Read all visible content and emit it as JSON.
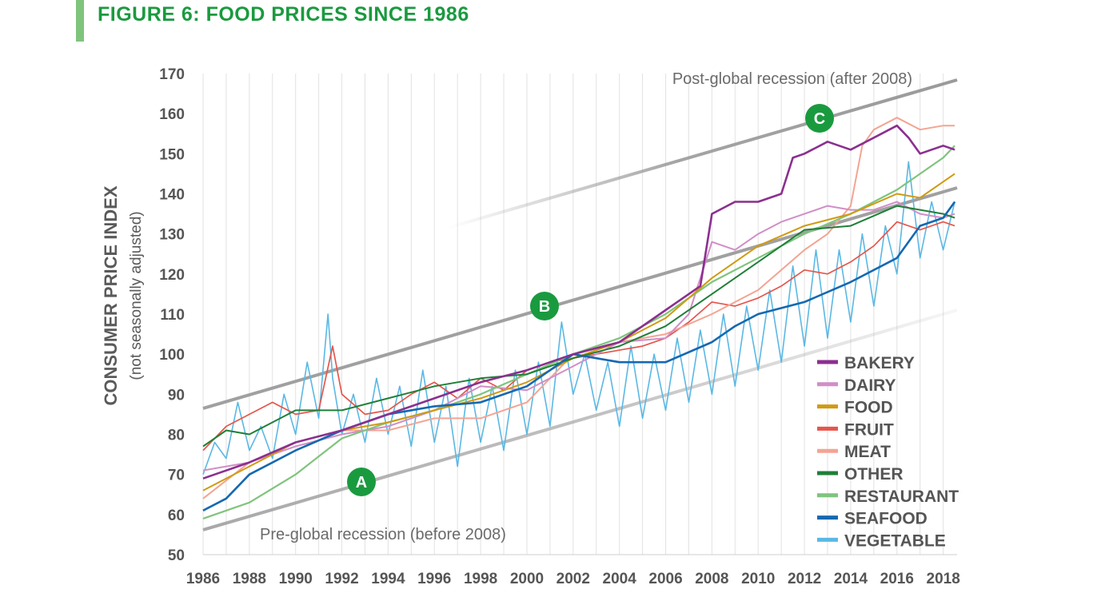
{
  "title": "FIGURE 6: FOOD PRICES SINCE 1986",
  "chart_data": {
    "type": "line",
    "title": "FIGURE 6: FOOD PRICES SINCE 1986",
    "ylabel": "CONSUMER PRICE INDEX",
    "ylabel_sub": "(not seasonally adjusted)",
    "xlabel": "",
    "xlim": [
      1986,
      2018.6
    ],
    "ylim": [
      50,
      170
    ],
    "x_ticks": [
      1986,
      1988,
      1990,
      1992,
      1994,
      1996,
      1998,
      2000,
      2002,
      2004,
      2006,
      2008,
      2010,
      2012,
      2014,
      2016,
      2018
    ],
    "y_ticks": [
      50,
      60,
      70,
      80,
      90,
      100,
      110,
      120,
      130,
      140,
      150,
      160,
      170
    ],
    "grid": "vertical",
    "legend_position": "lower-right",
    "series": [
      {
        "name": "BAKERY",
        "color": "#8b2f8f",
        "x": [
          1986,
          1988,
          1990,
          1992,
          1994,
          1996,
          1998,
          2000,
          2002,
          2004,
          2006,
          2007.5,
          2008,
          2009,
          2010,
          2011,
          2011.5,
          2012,
          2013,
          2014,
          2015,
          2016,
          2016.5,
          2017,
          2018,
          2018.5
        ],
        "y": [
          69,
          73,
          78,
          81,
          85,
          89,
          93,
          96,
          100,
          103,
          111,
          117,
          135,
          138,
          138,
          140,
          149,
          150,
          153,
          151,
          154,
          157,
          154,
          150,
          152,
          151
        ]
      },
      {
        "name": "DAIRY",
        "color": "#d18ec7",
        "x": [
          1986,
          1988,
          1990,
          1992,
          1994,
          1996,
          1998,
          2000,
          2002,
          2004,
          2006,
          2007,
          2008,
          2009,
          2010,
          2011,
          2012,
          2013,
          2014,
          2015,
          2016,
          2017,
          2018,
          2018.5
        ],
        "y": [
          71,
          73,
          77,
          80,
          82,
          86,
          92,
          91,
          97,
          103,
          104,
          110,
          128,
          126,
          130,
          133,
          135,
          137,
          136,
          136,
          138,
          135,
          134,
          135
        ]
      },
      {
        "name": "FOOD",
        "color": "#d09a12",
        "x": [
          1986,
          1988,
          1990,
          1992,
          1994,
          1996,
          1998,
          2000,
          2002,
          2004,
          2006,
          2008,
          2010,
          2012,
          2014,
          2016,
          2017,
          2018,
          2018.5
        ],
        "y": [
          66,
          72,
          78,
          81,
          83,
          86,
          89,
          93,
          99,
          103,
          109,
          119,
          127,
          132,
          135,
          140,
          139,
          143,
          145
        ]
      },
      {
        "name": "FRUIT",
        "color": "#e5564c",
        "x": [
          1986,
          1987,
          1988,
          1989,
          1990,
          1991,
          1991.6,
          1992,
          1993,
          1994,
          1995,
          1996,
          1997,
          1998,
          1999,
          2000,
          2001,
          2002,
          2003,
          2004,
          2005,
          2006,
          2007,
          2008,
          2009,
          2010,
          2011,
          2012,
          2013,
          2014,
          2015,
          2016,
          2017,
          2018,
          2018.5
        ],
        "y": [
          76,
          82,
          85,
          88,
          85,
          86,
          102,
          90,
          85,
          86,
          90,
          93,
          89,
          94,
          91,
          96,
          98,
          99,
          100,
          101,
          102,
          104,
          108,
          113,
          112,
          114,
          117,
          121,
          120,
          123,
          127,
          133,
          131,
          133,
          132
        ]
      },
      {
        "name": "MEAT",
        "color": "#f3a493",
        "x": [
          1986,
          1988,
          1990,
          1992,
          1994,
          1996,
          1998,
          2000,
          2002,
          2004,
          2006,
          2008,
          2010,
          2012,
          2013,
          2014,
          2014.5,
          2015,
          2016,
          2017,
          2018,
          2018.5
        ],
        "y": [
          64,
          73,
          78,
          81,
          81,
          84,
          84,
          88,
          100,
          103,
          105,
          110,
          116,
          126,
          130,
          137,
          152,
          156,
          159,
          156,
          157,
          157
        ]
      },
      {
        "name": "OTHER",
        "color": "#1f7f38",
        "x": [
          1986,
          1987,
          1988,
          1990,
          1992,
          1994,
          1996,
          1998,
          2000,
          2002,
          2004,
          2006,
          2008,
          2010,
          2012,
          2014,
          2016,
          2018,
          2018.5
        ],
        "y": [
          77,
          81,
          80,
          86,
          86,
          89,
          92,
          94,
          95,
          99,
          102,
          107,
          115,
          123,
          131,
          132,
          137,
          135,
          134
        ]
      },
      {
        "name": "RESTAURANT",
        "color": "#7fc47d",
        "x": [
          1986,
          1988,
          1990,
          1992,
          1994,
          1996,
          1998,
          2000,
          2002,
          2004,
          2006,
          2008,
          2010,
          2012,
          2014,
          2016,
          2018,
          2018.5
        ],
        "y": [
          59,
          63,
          70,
          79,
          83,
          86,
          90,
          95,
          100,
          104,
          110,
          118,
          124,
          130,
          135,
          141,
          149,
          152
        ]
      },
      {
        "name": "SEAFOOD",
        "color": "#1568b0",
        "x": [
          1986,
          1987,
          1988,
          1990,
          1992,
          1994,
          1996,
          1998,
          2000,
          2002,
          2004,
          2006,
          2008,
          2009,
          2010,
          2012,
          2014,
          2016,
          2017,
          2018,
          2018.5
        ],
        "y": [
          61,
          64,
          70,
          76,
          81,
          85,
          87,
          88,
          92,
          100,
          98,
          98,
          103,
          107,
          110,
          113,
          118,
          124,
          132,
          134,
          138
        ]
      },
      {
        "name": "VEGETABLE",
        "color": "#5ab8e4",
        "x": [
          1986,
          1986.5,
          1987,
          1987.5,
          1988,
          1988.5,
          1989,
          1989.5,
          1990,
          1990.5,
          1991,
          1991.4,
          1991.6,
          1992,
          1992.5,
          1993,
          1993.5,
          1994,
          1994.5,
          1995,
          1995.5,
          1996,
          1996.5,
          1997,
          1997.5,
          1998,
          1998.5,
          1999,
          1999.5,
          2000,
          2000.5,
          2001,
          2001.5,
          2002,
          2002.5,
          2003,
          2003.5,
          2004,
          2004.5,
          2005,
          2005.5,
          2006,
          2006.5,
          2007,
          2007.5,
          2008,
          2008.5,
          2009,
          2009.5,
          2010,
          2010.5,
          2011,
          2011.5,
          2012,
          2012.5,
          2013,
          2013.5,
          2014,
          2014.5,
          2015,
          2015.5,
          2016,
          2016.5,
          2017,
          2017.5,
          2018,
          2018.5
        ],
        "y": [
          70,
          78,
          74,
          88,
          76,
          82,
          74,
          90,
          80,
          98,
          84,
          110,
          94,
          80,
          90,
          78,
          94,
          80,
          92,
          77,
          96,
          78,
          92,
          72,
          94,
          78,
          92,
          76,
          96,
          80,
          98,
          82,
          108,
          90,
          100,
          86,
          98,
          82,
          102,
          84,
          100,
          86,
          104,
          88,
          106,
          90,
          110,
          92,
          112,
          96,
          116,
          98,
          122,
          102,
          126,
          104,
          126,
          108,
          130,
          112,
          132,
          120,
          148,
          124,
          138,
          126,
          138
        ]
      }
    ],
    "annotations": {
      "upper_line_label": "Post-global recession (after 2008)",
      "lower_line_label": "Pre-global recession (before 2008)",
      "markers": [
        "A",
        "B",
        "C"
      ]
    }
  }
}
